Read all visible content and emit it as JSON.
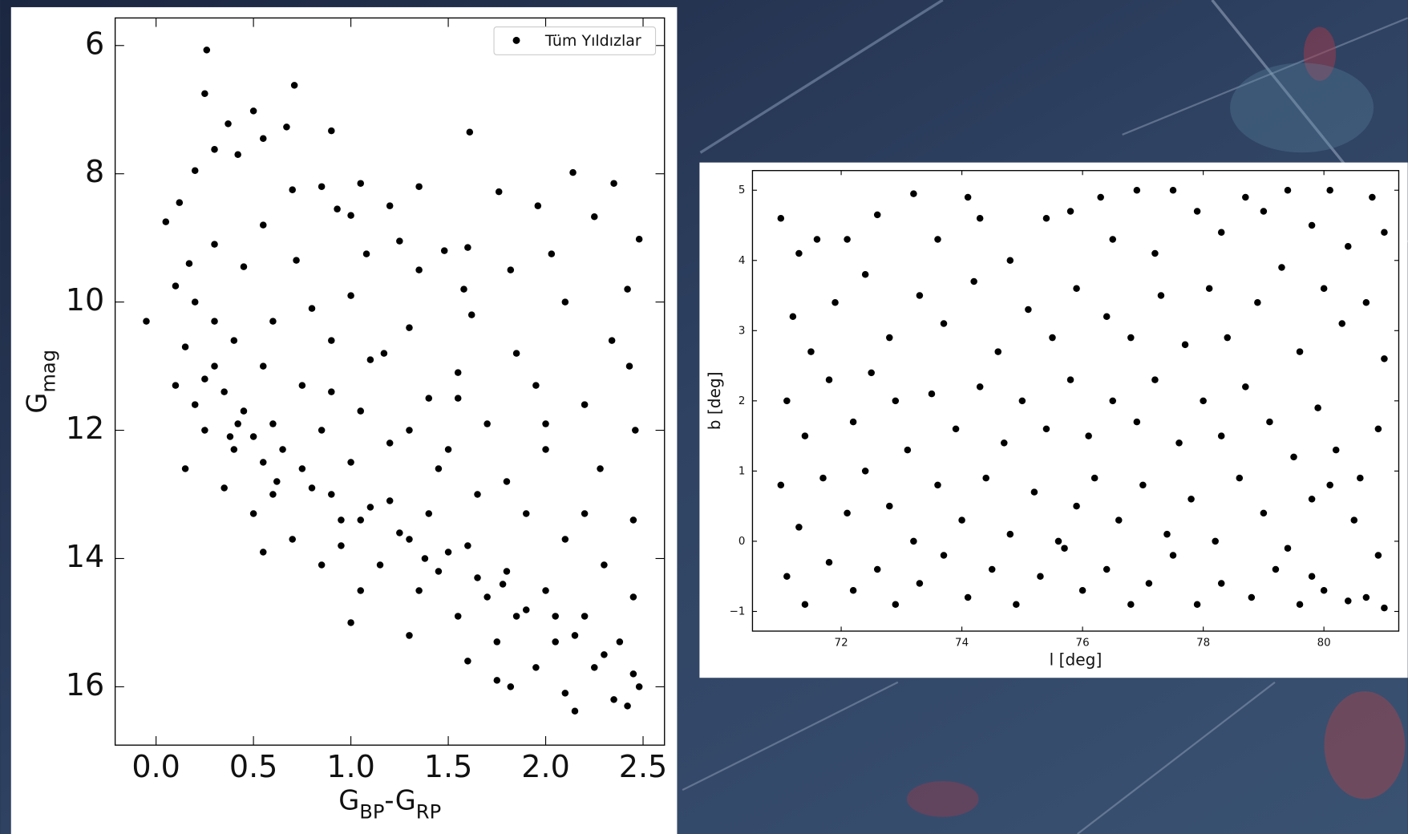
{
  "chart_data": [
    {
      "type": "scatter",
      "xlabel": [
        "G",
        "BP",
        "-G",
        "RP"
      ],
      "ylabel": [
        "G",
        "mag"
      ],
      "xlim": [
        -0.21,
        2.61
      ],
      "ylim": [
        16.91,
        5.57
      ],
      "xticks": [
        {
          "value": 0,
          "label": "0.0"
        },
        0.5,
        {
          "value": 1,
          "label": "1.0"
        },
        1.5,
        {
          "value": 2,
          "label": "2.0"
        },
        2.5
      ],
      "yticks": [
        6,
        8,
        10,
        12,
        14,
        16
      ],
      "legend": "upper right",
      "x": [
        0.26,
        0.25,
        0.71,
        0.5,
        0.37,
        0.67,
        0.9,
        1.61,
        0.55,
        0.3,
        0.42,
        0.2,
        2.14,
        2.35,
        1.05,
        1.35,
        0.7,
        0.85,
        1.76,
        0.12,
        1.96,
        0.93,
        1.2,
        2.25,
        0.05,
        0.55,
        1.0,
        1.6,
        1.25,
        0.3,
        2.48,
        1.08,
        2.03,
        0.17,
        1.48,
        0.72,
        1.35,
        1.82,
        0.45,
        0.1,
        1.58,
        2.42,
        2.1,
        0.8,
        1.0,
        -0.05,
        0.2,
        1.62,
        1.3,
        0.6,
        2.34,
        1.85,
        0.15,
        0.4,
        0.9,
        1.17,
        2.43,
        0.3,
        0.55,
        1.55,
        0.1,
        0.35,
        0.75,
        1.95,
        1.4,
        0.2,
        0.45,
        1.05,
        2.2,
        0.6,
        0.25,
        0.85,
        1.7,
        2.46,
        0.4,
        1.2,
        0.55,
        2.0,
        0.15,
        0.75,
        1.0,
        1.45,
        2.28,
        0.35,
        0.6,
        0.9,
        1.2,
        1.65,
        0.5,
        1.05,
        1.4,
        1.9,
        2.45,
        0.7,
        0.95,
        1.3,
        1.6,
        2.1,
        0.85,
        1.15,
        1.45,
        1.8,
        2.3,
        0.55,
        1.05,
        1.35,
        1.7,
        2.0,
        2.45,
        1.0,
        1.55,
        1.85,
        2.2,
        1.3,
        1.75,
        2.05,
        2.38,
        1.6,
        1.95,
        2.25,
        2.45,
        1.82,
        2.1,
        2.35,
        2.15,
        2.42,
        1.75,
        2.48,
        0.3,
        0.25,
        0.42,
        0.5,
        0.65,
        0.8,
        1.1,
        1.25,
        1.5,
        1.65,
        1.9,
        2.15,
        0.38,
        0.62,
        0.95,
        1.38,
        1.78,
        2.05,
        2.3,
        1.5,
        1.8,
        2.2,
        1.3,
        0.9,
        1.1,
        1.55,
        2.0
      ],
      "series": [
        {
          "name": "Tüm Yıldızlar",
          "color": "#000000",
          "values": [
            6.07,
            6.75,
            6.62,
            7.02,
            7.22,
            7.27,
            7.33,
            7.35,
            7.45,
            7.62,
            7.7,
            7.95,
            7.98,
            8.15,
            8.15,
            8.2,
            8.25,
            8.2,
            8.28,
            8.45,
            8.5,
            8.55,
            8.5,
            8.67,
            8.75,
            8.8,
            8.65,
            9.15,
            9.05,
            9.1,
            9.02,
            9.25,
            9.25,
            9.4,
            9.2,
            9.35,
            9.5,
            9.5,
            9.45,
            9.75,
            9.8,
            9.8,
            10.0,
            10.1,
            9.9,
            10.3,
            10.0,
            10.2,
            10.4,
            10.3,
            10.6,
            10.8,
            10.7,
            10.6,
            10.6,
            10.8,
            11.0,
            11.0,
            11.0,
            11.1,
            11.3,
            11.4,
            11.3,
            11.3,
            11.5,
            11.6,
            11.7,
            11.7,
            11.6,
            11.9,
            12.0,
            12.0,
            11.9,
            12.0,
            12.3,
            12.2,
            12.5,
            12.3,
            12.6,
            12.6,
            12.5,
            12.6,
            12.6,
            12.9,
            13.0,
            13.0,
            13.1,
            13.0,
            13.3,
            13.4,
            13.3,
            13.3,
            13.4,
            13.7,
            13.8,
            13.7,
            13.8,
            13.7,
            14.1,
            14.1,
            14.2,
            14.2,
            14.1,
            13.9,
            14.5,
            14.5,
            14.6,
            14.5,
            14.6,
            15.0,
            14.9,
            14.9,
            14.9,
            15.2,
            15.3,
            15.3,
            15.3,
            15.6,
            15.7,
            15.7,
            15.8,
            16.0,
            16.1,
            16.2,
            16.38,
            16.3,
            15.9,
            16.0,
            10.3,
            11.2,
            11.9,
            12.1,
            12.3,
            12.9,
            13.2,
            13.6,
            13.9,
            14.3,
            14.8,
            15.2,
            12.1,
            12.8,
            13.4,
            14.0,
            14.4,
            14.9,
            15.5,
            12.3,
            12.8,
            13.3,
            12.0,
            11.4,
            10.9,
            11.5,
            11.9
          ]
        }
      ]
    },
    {
      "type": "scatter",
      "xlabel": "l [deg]",
      "ylabel": "b [deg]",
      "xlim": [
        70.53,
        81.24
      ],
      "ylim": [
        -1.28,
        5.28
      ],
      "xticks": [
        72,
        74,
        76,
        78,
        80
      ],
      "yticks": [
        {
          "value": -1,
          "label": "−1"
        },
        0,
        1,
        2,
        3,
        4,
        5
      ],
      "color": "#000000",
      "x": [
        71.0,
        71.3,
        71.6,
        72.1,
        72.6,
        73.2,
        73.6,
        74.1,
        74.3,
        74.8,
        75.4,
        75.8,
        76.3,
        76.5,
        76.9,
        77.2,
        77.5,
        77.9,
        78.3,
        78.7,
        79.0,
        79.4,
        79.8,
        80.1,
        80.4,
        80.8,
        81.0,
        71.2,
        71.5,
        71.9,
        72.4,
        72.8,
        73.3,
        73.7,
        74.2,
        74.6,
        75.1,
        75.5,
        75.9,
        76.4,
        76.8,
        77.3,
        77.7,
        78.1,
        78.4,
        78.9,
        79.3,
        79.6,
        80.0,
        80.3,
        80.7,
        81.0,
        71.1,
        71.4,
        71.8,
        72.2,
        72.5,
        72.9,
        73.1,
        73.5,
        73.9,
        74.3,
        74.7,
        75.0,
        75.4,
        75.8,
        76.1,
        76.5,
        76.9,
        77.2,
        77.6,
        78.0,
        78.3,
        78.7,
        79.1,
        79.5,
        79.9,
        80.2,
        80.6,
        80.9,
        71.0,
        71.3,
        71.7,
        72.1,
        72.4,
        72.8,
        73.2,
        73.6,
        74.0,
        74.4,
        74.8,
        75.2,
        75.6,
        75.9,
        76.2,
        76.6,
        77.0,
        77.4,
        77.8,
        78.2,
        78.6,
        79.0,
        79.4,
        79.8,
        80.1,
        80.5,
        80.9,
        71.1,
        71.4,
        71.8,
        72.2,
        72.6,
        72.9,
        73.3,
        73.7,
        74.1,
        74.5,
        74.9,
        75.3,
        75.7,
        76.0,
        76.4,
        76.8,
        77.1,
        77.5,
        77.9,
        78.3,
        78.8,
        79.2,
        79.6,
        80.0,
        80.4,
        80.7,
        81.0,
        79.8
      ],
      "values": [
        4.6,
        4.1,
        4.3,
        4.3,
        4.65,
        4.95,
        4.3,
        4.9,
        4.6,
        4.0,
        4.6,
        4.7,
        4.9,
        4.3,
        5.0,
        4.1,
        5.0,
        4.7,
        4.4,
        4.9,
        4.7,
        5.0,
        4.5,
        5.0,
        4.2,
        4.9,
        4.4,
        3.2,
        2.7,
        3.4,
        3.8,
        2.9,
        3.5,
        3.1,
        3.7,
        2.7,
        3.3,
        2.9,
        3.6,
        3.2,
        2.9,
        3.5,
        2.8,
        3.6,
        2.9,
        3.4,
        3.9,
        2.7,
        3.6,
        3.1,
        3.4,
        2.6,
        2.0,
        1.5,
        2.3,
        1.7,
        2.4,
        2.0,
        1.3,
        2.1,
        1.6,
        2.2,
        1.4,
        2.0,
        1.6,
        2.3,
        1.5,
        2.0,
        1.7,
        2.3,
        1.4,
        2.0,
        1.5,
        2.2,
        1.7,
        1.2,
        1.9,
        1.3,
        0.9,
        1.6,
        0.8,
        0.2,
        0.9,
        0.4,
        1.0,
        0.5,
        0.0,
        0.8,
        0.3,
        0.9,
        0.1,
        0.7,
        0.0,
        0.5,
        0.9,
        0.3,
        0.8,
        0.1,
        0.6,
        0.0,
        0.9,
        0.4,
        -0.1,
        0.6,
        0.8,
        0.3,
        -0.2,
        -0.5,
        -0.9,
        -0.3,
        -0.7,
        -0.4,
        -0.9,
        -0.6,
        -0.2,
        -0.8,
        -0.4,
        -0.9,
        -0.5,
        -0.1,
        -0.7,
        -0.4,
        -0.9,
        -0.6,
        -0.2,
        -0.9,
        -0.6,
        -0.8,
        -0.4,
        -0.9,
        -0.7,
        -0.85,
        -0.8,
        -0.95,
        -0.5
      ]
    }
  ]
}
